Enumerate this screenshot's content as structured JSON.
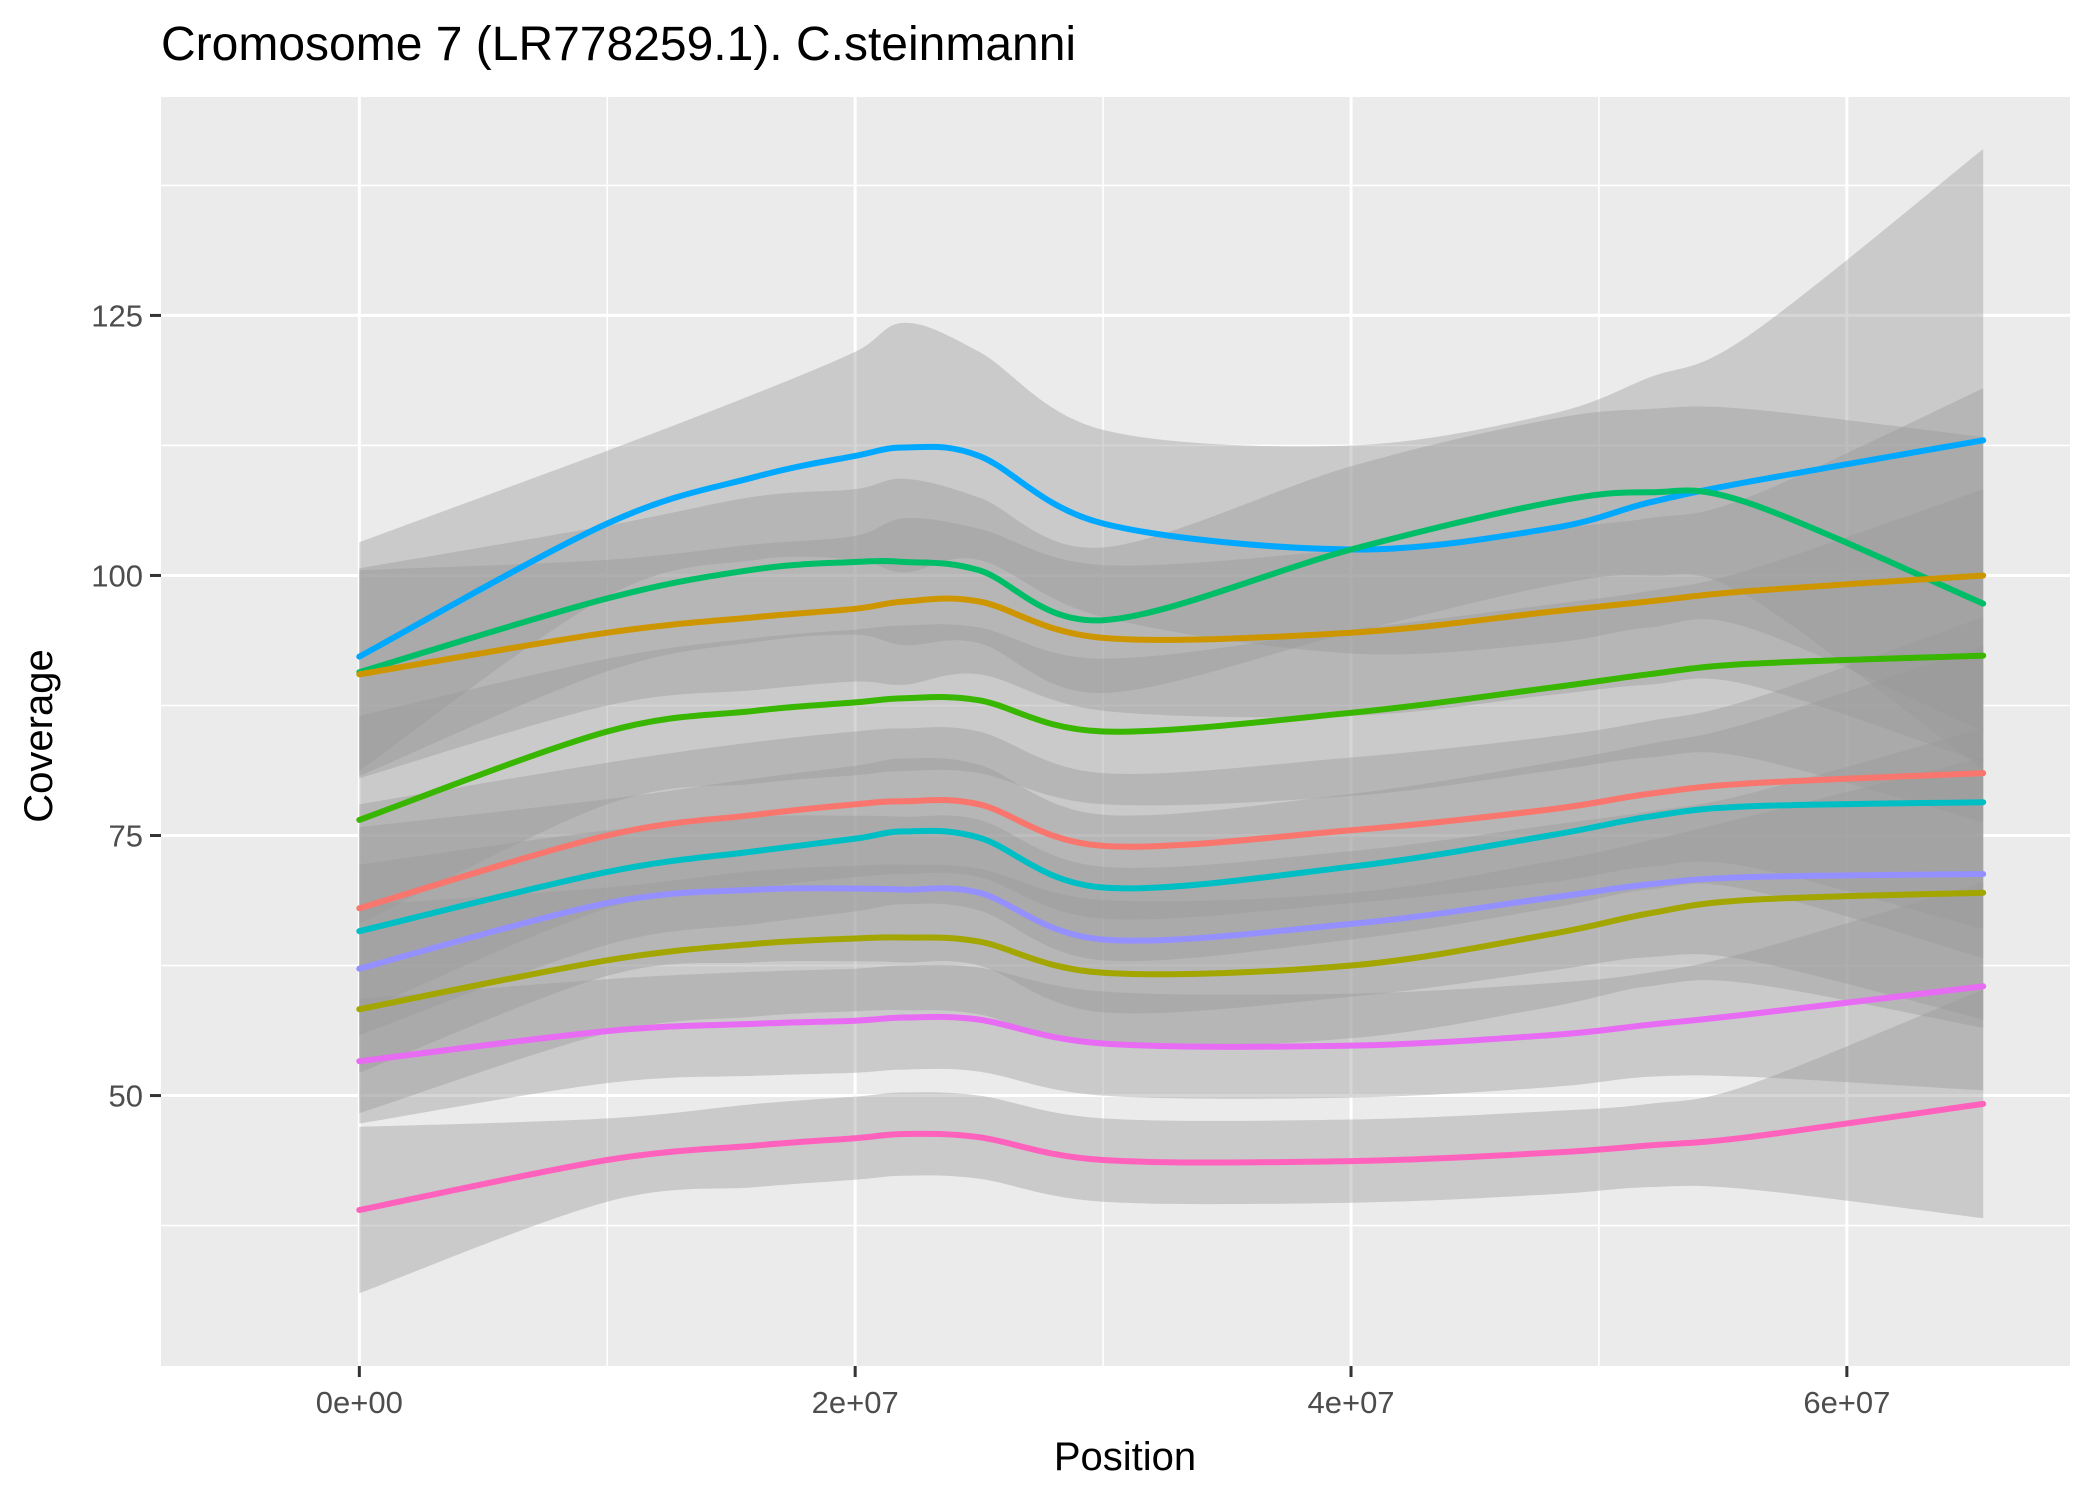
{
  "chart_data": {
    "type": "line",
    "title": "Cromosome 7 (LR778259.1). C.steinmanni",
    "xlabel": "Position",
    "ylabel": "Coverage",
    "xlim": [
      -8000000,
      69000000
    ],
    "ylim": [
      24,
      146
    ],
    "x_ticks": [
      0,
      20000000,
      40000000,
      60000000
    ],
    "x_tick_labels": [
      "0e+00",
      "2e+07",
      "4e+07",
      "6e+07"
    ],
    "y_ticks": [
      50,
      75,
      100,
      125
    ],
    "y_tick_labels": [
      "50",
      "75",
      "100",
      "125"
    ],
    "grid": true,
    "legend": "none",
    "background": "#ebebeb",
    "band_color": "#999999",
    "x": [
      0,
      10000000,
      16000000,
      20000000,
      22000000,
      25000000,
      30000000,
      40000000,
      48000000,
      52000000,
      56000000,
      65500000
    ],
    "series": [
      {
        "color": "#00a9ff",
        "values": [
          92.2,
          105.0,
          109.5,
          111.5,
          112.3,
          111.5,
          105.0,
          102.5,
          104.5,
          107.0,
          109.0,
          113.0
        ],
        "band": [
          11,
          7,
          8,
          10,
          12,
          10,
          9,
          10,
          11,
          12,
          14,
          28
        ]
      },
      {
        "color": "#00be67",
        "values": [
          90.7,
          97.8,
          100.6,
          101.3,
          101.3,
          100.5,
          95.7,
          102.5,
          107.0,
          108.0,
          107.0,
          97.3
        ],
        "band": [
          10,
          7,
          7,
          7,
          8,
          7,
          7,
          8,
          8,
          8,
          9,
          16
        ]
      },
      {
        "color": "#cd9600",
        "values": [
          90.5,
          94.5,
          96.0,
          96.8,
          97.5,
          97.5,
          94.0,
          94.5,
          96.5,
          97.5,
          98.5,
          100.0
        ],
        "band": [
          10,
          7,
          7,
          7,
          8,
          7,
          7,
          8,
          8,
          8,
          9,
          18
        ]
      },
      {
        "color": "#39b600",
        "values": [
          76.5,
          85.0,
          87.0,
          87.8,
          88.2,
          88.0,
          85.0,
          86.8,
          89.2,
          90.5,
          91.5,
          92.3
        ],
        "band": [
          10,
          7,
          7,
          7,
          7,
          7,
          7,
          8,
          8,
          8,
          9,
          16
        ]
      },
      {
        "color": "#f8766d",
        "values": [
          68.0,
          75.0,
          77.0,
          78.0,
          78.3,
          78.0,
          74.0,
          75.5,
          77.5,
          79.0,
          80.0,
          81.0
        ],
        "band": [
          10,
          7,
          7,
          7,
          7,
          7,
          7,
          7,
          7,
          7,
          8,
          15
        ]
      },
      {
        "color": "#00bfc4",
        "values": [
          65.8,
          71.5,
          73.5,
          74.7,
          75.4,
          74.8,
          70.0,
          72.0,
          75.0,
          76.8,
          77.8,
          78.2
        ],
        "band": [
          10,
          7,
          7,
          7,
          7,
          7,
          7,
          7,
          7,
          7,
          8,
          15
        ]
      },
      {
        "color": "#9590ff",
        "values": [
          62.2,
          68.5,
          69.8,
          69.9,
          69.8,
          69.5,
          65.0,
          66.5,
          69.0,
          70.3,
          71.0,
          71.3
        ],
        "band": [
          10,
          7,
          7,
          7,
          7,
          7,
          7,
          7,
          7,
          7,
          8,
          14
        ]
      },
      {
        "color": "#a3a500",
        "values": [
          58.3,
          63.0,
          64.6,
          65.1,
          65.2,
          64.8,
          61.8,
          62.5,
          65.5,
          67.5,
          68.8,
          69.5
        ],
        "band": [
          10,
          7,
          7,
          7,
          7,
          7,
          7,
          7,
          7,
          7,
          8,
          13
        ]
      },
      {
        "color": "#e76bf3",
        "values": [
          53.3,
          56.2,
          56.9,
          57.2,
          57.5,
          57.3,
          55.0,
          54.8,
          55.8,
          56.8,
          57.8,
          60.5
        ],
        "band": [
          6,
          5,
          5,
          5,
          5,
          5,
          5,
          5,
          5,
          5,
          6,
          10
        ]
      },
      {
        "color": "#ff62bc",
        "values": [
          39.0,
          43.8,
          45.2,
          45.9,
          46.3,
          46.0,
          43.8,
          43.7,
          44.5,
          45.2,
          46.0,
          49.2
        ],
        "band": [
          8,
          4,
          4,
          4,
          4,
          4,
          4,
          4,
          4,
          4,
          5,
          11
        ]
      }
    ]
  }
}
